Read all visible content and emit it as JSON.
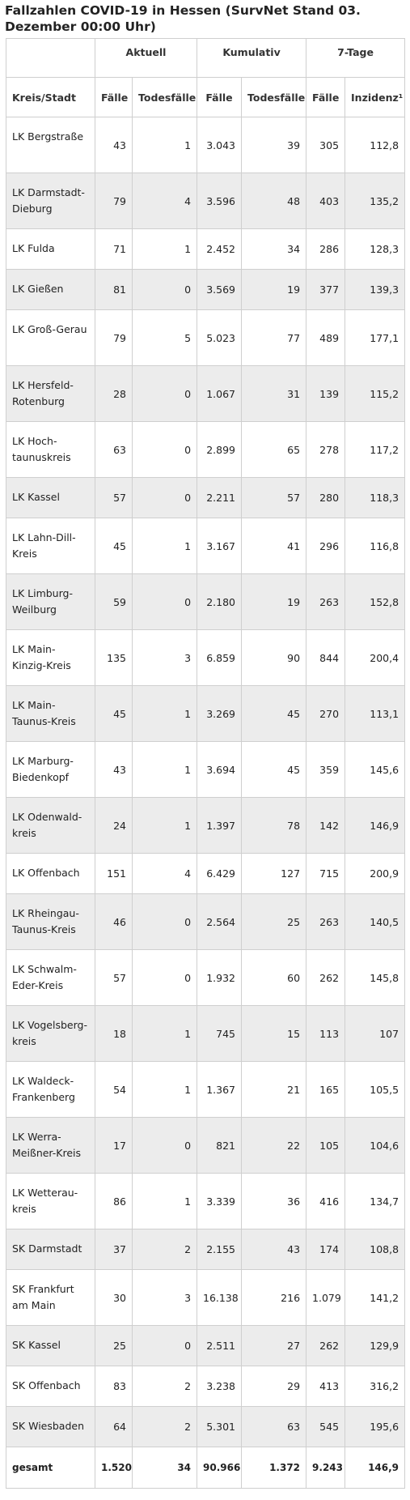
{
  "title": "Fallzahlen COVID-19 in Hessen (SurvNet Stand 03. Dezember 00:00 Uhr)",
  "groups": {
    "aktuell": "Aktuell",
    "kumulativ": "Kumulativ",
    "sieben_tage": "7-Tage"
  },
  "columns": {
    "kreis": "Kreis/Stadt",
    "faelle_akt": "Fälle",
    "tode_akt": "Todesfälle",
    "faelle_kum": "Fälle",
    "tode_kum": "Todesfälle",
    "faelle_7": "Fälle",
    "inzidenz": "Inzidenz¹"
  },
  "rows": [
    {
      "name": "LK Bergstraße",
      "fa": "43",
      "ta": "1",
      "fk": "3.043",
      "tk": "39",
      "f7": "305",
      "inz": "112,8"
    },
    {
      "name": "LK Darmstadt-Dieburg",
      "fa": "79",
      "ta": "4",
      "fk": "3.596",
      "tk": "48",
      "f7": "403",
      "inz": "135,2"
    },
    {
      "name": "LK Fulda",
      "fa": "71",
      "ta": "1",
      "fk": "2.452",
      "tk": "34",
      "f7": "286",
      "inz": "128,3"
    },
    {
      "name": "LK Gießen",
      "fa": "81",
      "ta": "0",
      "fk": "3.569",
      "tk": "19",
      "f7": "377",
      "inz": "139,3"
    },
    {
      "name": "LK Groß-Gerau",
      "fa": "79",
      "ta": "5",
      "fk": "5.023",
      "tk": "77",
      "f7": "489",
      "inz": "177,1"
    },
    {
      "name": "LK Hersfeld-Rotenburg",
      "fa": "28",
      "ta": "0",
      "fk": "1.067",
      "tk": "31",
      "f7": "139",
      "inz": "115,2"
    },
    {
      "name": "LK Hoch-taunuskreis",
      "fa": "63",
      "ta": "0",
      "fk": "2.899",
      "tk": "65",
      "f7": "278",
      "inz": "117,2"
    },
    {
      "name": "LK Kassel",
      "fa": "57",
      "ta": "0",
      "fk": "2.211",
      "tk": "57",
      "f7": "280",
      "inz": "118,3"
    },
    {
      "name": "LK Lahn-Dill-Kreis",
      "fa": "45",
      "ta": "1",
      "fk": "3.167",
      "tk": "41",
      "f7": "296",
      "inz": "116,8"
    },
    {
      "name": "LK Limburg-Weilburg",
      "fa": "59",
      "ta": "0",
      "fk": "2.180",
      "tk": "19",
      "f7": "263",
      "inz": "152,8"
    },
    {
      "name": "LK Main-Kinzig-Kreis",
      "fa": "135",
      "ta": "3",
      "fk": "6.859",
      "tk": "90",
      "f7": "844",
      "inz": "200,4"
    },
    {
      "name": "LK Main-Taunus-Kreis",
      "fa": "45",
      "ta": "1",
      "fk": "3.269",
      "tk": "45",
      "f7": "270",
      "inz": "113,1"
    },
    {
      "name": "LK Marburg-Biedenkopf",
      "fa": "43",
      "ta": "1",
      "fk": "3.694",
      "tk": "45",
      "f7": "359",
      "inz": "145,6"
    },
    {
      "name": "LK Odenwald-kreis",
      "fa": "24",
      "ta": "1",
      "fk": "1.397",
      "tk": "78",
      "f7": "142",
      "inz": "146,9"
    },
    {
      "name": "LK Offenbach",
      "fa": "151",
      "ta": "4",
      "fk": "6.429",
      "tk": "127",
      "f7": "715",
      "inz": "200,9"
    },
    {
      "name": "LK Rheingau-Taunus-Kreis",
      "fa": "46",
      "ta": "0",
      "fk": "2.564",
      "tk": "25",
      "f7": "263",
      "inz": "140,5"
    },
    {
      "name": "LK Schwalm-Eder-Kreis",
      "fa": "57",
      "ta": "0",
      "fk": "1.932",
      "tk": "60",
      "f7": "262",
      "inz": "145,8"
    },
    {
      "name": "LK Vogelsberg-kreis",
      "fa": "18",
      "ta": "1",
      "fk": "745",
      "tk": "15",
      "f7": "113",
      "inz": "107"
    },
    {
      "name": "LK Waldeck-Frankenberg",
      "fa": "54",
      "ta": "1",
      "fk": "1.367",
      "tk": "21",
      "f7": "165",
      "inz": "105,5"
    },
    {
      "name": "LK Werra-Meißner-Kreis",
      "fa": "17",
      "ta": "0",
      "fk": "821",
      "tk": "22",
      "f7": "105",
      "inz": "104,6"
    },
    {
      "name": "LK Wetterau-kreis",
      "fa": "86",
      "ta": "1",
      "fk": "3.339",
      "tk": "36",
      "f7": "416",
      "inz": "134,7"
    },
    {
      "name": "SK Darmstadt",
      "fa": "37",
      "ta": "2",
      "fk": "2.155",
      "tk": "43",
      "f7": "174",
      "inz": "108,8"
    },
    {
      "name": "SK Frankfurt am Main",
      "fa": "30",
      "ta": "3",
      "fk": "16.138",
      "tk": "216",
      "f7": "1.079",
      "inz": "141,2"
    },
    {
      "name": "SK Kassel",
      "fa": "25",
      "ta": "0",
      "fk": "2.511",
      "tk": "27",
      "f7": "262",
      "inz": "129,9"
    },
    {
      "name": "SK Offenbach",
      "fa": "83",
      "ta": "2",
      "fk": "3.238",
      "tk": "29",
      "f7": "413",
      "inz": "316,2"
    },
    {
      "name": "SK Wiesbaden",
      "fa": "64",
      "ta": "2",
      "fk": "5.301",
      "tk": "63",
      "f7": "545",
      "inz": "195,6"
    }
  ],
  "total": {
    "name": "gesamt",
    "fa": "1.520",
    "ta": "34",
    "fk": "90.966",
    "tk": "1.372",
    "f7": "9.243",
    "inz": "146,9"
  }
}
